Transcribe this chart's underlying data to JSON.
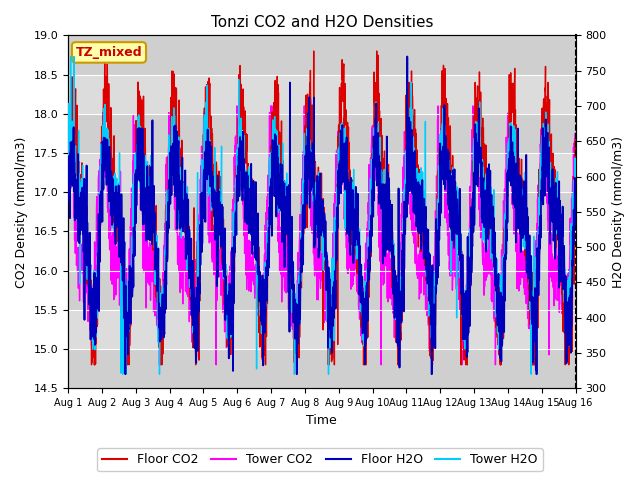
{
  "title": "Tonzi CO2 and H2O Densities",
  "xlabel": "Time",
  "ylabel_left": "CO2 Density (mmol/m3)",
  "ylabel_right": "H2O Density (mmol/m3)",
  "ylim_left": [
    14.5,
    19.0
  ],
  "ylim_right": [
    300,
    800
  ],
  "yticks_left": [
    14.5,
    15.0,
    15.5,
    16.0,
    16.5,
    17.0,
    17.5,
    18.0,
    18.5,
    19.0
  ],
  "yticks_right": [
    300,
    350,
    400,
    450,
    500,
    550,
    600,
    650,
    700,
    750,
    800
  ],
  "xtick_labels": [
    "Aug 1",
    "Aug 2",
    "Aug 3",
    "Aug 4",
    "Aug 5",
    "Aug 6",
    "Aug 7",
    "Aug 8",
    "Aug 9",
    "Aug 10",
    "Aug 11",
    "Aug 12",
    "Aug 13",
    "Aug 14",
    "Aug 15",
    "Aug 16"
  ],
  "tag_label": "TZ_mixed",
  "tag_facecolor": "#ffffaa",
  "tag_edgecolor": "#cc9900",
  "tag_textcolor": "#cc0000",
  "colors": {
    "floor_co2": "#dd0000",
    "tower_co2": "#ff00ff",
    "floor_h2o": "#0000bb",
    "tower_h2o": "#00ccff"
  },
  "legend_labels": [
    "Floor CO2",
    "Tower CO2",
    "Floor H2O",
    "Tower H2O"
  ],
  "plot_bg": "#d8d8d8",
  "fig_bg": "#ffffff",
  "n_points": 2160,
  "n_days": 15,
  "seed": 7
}
